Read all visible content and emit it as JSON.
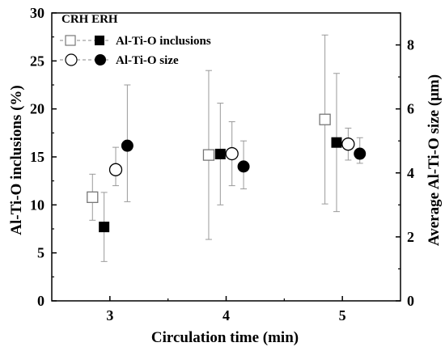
{
  "chart_data": {
    "type": "scatter",
    "xlabel": "Circulation time (min)",
    "ylabel_left": "Al-Ti-O inclusions (%)",
    "ylabel_right": "Average Al-Ti-O size (μm)",
    "x_ticks": [
      3,
      4,
      5
    ],
    "xlim": [
      2.5,
      5.5
    ],
    "ylim_left": [
      0,
      30
    ],
    "y_ticks_left": [
      0,
      5,
      10,
      15,
      20,
      25,
      30
    ],
    "ylim_right": [
      0,
      9
    ],
    "y_ticks_right": [
      0,
      2,
      4,
      6,
      8
    ],
    "legend": {
      "header": "CRH ERH",
      "entries": [
        "Al-Ti-O inclusions",
        "Al-Ti-O size"
      ],
      "placement": "top-left"
    },
    "series": [
      {
        "name": "CRH Al-Ti-O inclusions",
        "axis": "left",
        "marker": "square-open",
        "points": [
          {
            "x": 2.85,
            "y": 10.8,
            "lo": 8.4,
            "hi": 13.2
          },
          {
            "x": 3.85,
            "y": 15.2,
            "lo": 6.4,
            "hi": 24.0
          },
          {
            "x": 4.85,
            "y": 18.9,
            "lo": 10.1,
            "hi": 27.7
          }
        ]
      },
      {
        "name": "ERH Al-Ti-O inclusions",
        "axis": "left",
        "marker": "square-filled",
        "points": [
          {
            "x": 2.95,
            "y": 7.7,
            "lo": 4.1,
            "hi": 11.3
          },
          {
            "x": 3.95,
            "y": 15.3,
            "lo": 10.0,
            "hi": 20.6
          },
          {
            "x": 4.95,
            "y": 16.5,
            "lo": 9.3,
            "hi": 23.7
          }
        ]
      },
      {
        "name": "CRH Al-Ti-O size",
        "axis": "right",
        "marker": "circle-open",
        "points": [
          {
            "x": 3.05,
            "y": 4.1,
            "lo": 3.6,
            "hi": 4.8
          },
          {
            "x": 4.05,
            "y": 4.6,
            "lo": 3.6,
            "hi": 5.6
          },
          {
            "x": 5.05,
            "y": 4.9,
            "lo": 4.4,
            "hi": 5.4
          }
        ]
      },
      {
        "name": "ERH Al-Ti-O size",
        "axis": "right",
        "marker": "circle-filled",
        "points": [
          {
            "x": 3.15,
            "y": 4.85,
            "lo": 3.1,
            "hi": 6.75
          },
          {
            "x": 4.15,
            "y": 4.2,
            "lo": 3.5,
            "hi": 5.0
          },
          {
            "x": 5.15,
            "y": 4.6,
            "lo": 4.3,
            "hi": 5.1
          }
        ]
      }
    ]
  }
}
